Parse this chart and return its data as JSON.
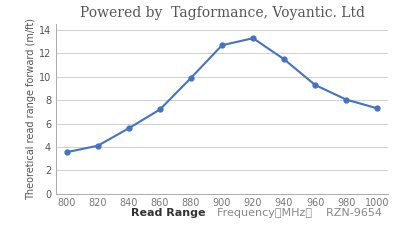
{
  "title": "Powered by  Tagformance, Voyantic. Ltd",
  "xlabel_bold": "Read Range",
  "xlabel_normal": "  Frequency（MHz）    RZN-9654",
  "ylabel": "Theoretical read range forward (m/ft)",
  "x": [
    800,
    820,
    840,
    860,
    880,
    900,
    920,
    940,
    960,
    980,
    1000
  ],
  "y": [
    3.55,
    4.1,
    5.6,
    7.2,
    9.9,
    12.7,
    13.3,
    11.5,
    9.3,
    8.05,
    7.3
  ],
  "xlim": [
    793,
    1007
  ],
  "ylim": [
    0,
    14.5
  ],
  "yticks": [
    0,
    2,
    4,
    6,
    8,
    10,
    12,
    14
  ],
  "xticks": [
    800,
    820,
    840,
    860,
    880,
    900,
    920,
    940,
    960,
    980,
    1000
  ],
  "line_color": "#4472C4",
  "marker": "o",
  "marker_size": 3.5,
  "line_width": 1.5,
  "bg_color": "#ffffff",
  "grid_color": "#c8c8c8",
  "title_fontsize": 10,
  "ylabel_fontsize": 7,
  "tick_fontsize": 7,
  "xlabel_fontsize": 8
}
